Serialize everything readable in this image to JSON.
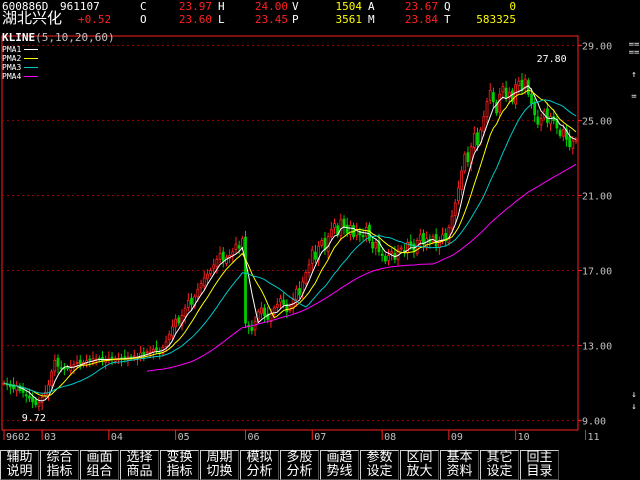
{
  "quote": {
    "code": "600886D",
    "date": "961107",
    "name": "湖北兴化",
    "change": "+0.52",
    "rows": [
      [
        {
          "label": "C",
          "value": "23.97"
        },
        {
          "label": "H",
          "value": "24.00"
        },
        {
          "label": "V",
          "value": "1504"
        },
        {
          "label": "A",
          "value": "23.67"
        },
        {
          "label": "Q",
          "value": "0"
        }
      ],
      [
        {
          "label": "O",
          "value": "23.60"
        },
        {
          "label": "L",
          "value": "23.45"
        },
        {
          "label": "P",
          "value": "3561"
        },
        {
          "label": "M",
          "value": "23.84"
        },
        {
          "label": "T",
          "value": "583325"
        }
      ]
    ]
  },
  "chart_title": {
    "name": "KLINE",
    "params": "(5,10,20,60)"
  },
  "ma_legend": [
    {
      "label": "PMA1",
      "color": "#ffffff"
    },
    {
      "label": "PMA2",
      "color": "#ffff00"
    },
    {
      "label": "PMA3",
      "color": "#00c8c8"
    },
    {
      "label": "PMA4",
      "color": "#ff00ff"
    }
  ],
  "colors": {
    "up": "#ff2020",
    "down": "#00d000",
    "grid": "#a00000",
    "axis": "#ff2020",
    "label": "#c0c0c0",
    "annot": "#ffffff"
  },
  "chart_data": {
    "type": "candlestick",
    "y_ticks": [
      "29.00",
      "25.00",
      "21.00",
      "17.00",
      "13.00",
      "9.00"
    ],
    "ylim": [
      8.5,
      29.5
    ],
    "x_labels": [
      "9602",
      "03",
      "04",
      "05",
      "06",
      "07",
      "08",
      "09",
      "10",
      "11"
    ],
    "x_label_index": [
      0,
      12,
      33,
      54,
      76,
      97,
      119,
      140,
      161,
      183
    ],
    "annotations": [
      {
        "text": "27.80",
        "index": 172,
        "value": 27.8
      },
      {
        "text": "9.72",
        "index": 10,
        "value": 9.72
      }
    ],
    "close": [
      11.0,
      10.9,
      10.8,
      10.7,
      10.85,
      10.6,
      10.5,
      10.35,
      10.2,
      10.0,
      9.85,
      9.95,
      10.25,
      10.5,
      10.9,
      11.6,
      12.2,
      11.9,
      11.8,
      11.75,
      11.8,
      11.9,
      12.0,
      12.1,
      12.05,
      12.1,
      12.2,
      12.25,
      12.3,
      12.28,
      12.25,
      12.2,
      12.25,
      12.3,
      12.28,
      12.32,
      12.3,
      12.28,
      12.3,
      12.4,
      12.35,
      12.45,
      12.4,
      12.6,
      12.5,
      12.7,
      12.65,
      12.8,
      12.75,
      12.6,
      12.9,
      13.2,
      13.6,
      14.0,
      14.4,
      14.2,
      14.6,
      15.0,
      15.4,
      15.2,
      15.6,
      16.0,
      16.3,
      16.6,
      16.8,
      17.0,
      17.3,
      17.6,
      17.9,
      17.5,
      17.7,
      17.8,
      18.0,
      18.4,
      18.2,
      18.7,
      14.2,
      14.0,
      13.8,
      14.3,
      14.8,
      15.0,
      14.6,
      14.4,
      14.7,
      15.0,
      15.2,
      15.5,
      15.2,
      14.8,
      15.1,
      15.5,
      16.0,
      15.7,
      16.4,
      16.9,
      17.3,
      18.1,
      17.6,
      18.3,
      18.6,
      18.1,
      18.8,
      19.2,
      19.5,
      18.9,
      19.7,
      19.3,
      19.0,
      19.4,
      18.8,
      19.2,
      18.9,
      18.8,
      19.3,
      18.6,
      18.2,
      18.5,
      18.0,
      17.8,
      17.5,
      17.8,
      18.0,
      17.6,
      18.1,
      18.2,
      18.0,
      18.5,
      18.3,
      18.0,
      18.6,
      18.9,
      18.4,
      18.7,
      18.5,
      18.8,
      18.3,
      18.6,
      18.9,
      18.6,
      19.3,
      19.9,
      20.6,
      21.4,
      22.3,
      23.2,
      22.8,
      23.6,
      24.3,
      23.7,
      24.5,
      25.2,
      26.0,
      26.6,
      26.0,
      25.4,
      26.4,
      26.8,
      26.2,
      26.5,
      26.0,
      26.9,
      27.1,
      26.6,
      27.2,
      26.4,
      25.9,
      25.3,
      24.8,
      25.1,
      25.5,
      24.9,
      25.2,
      25.0,
      24.6,
      24.2,
      24.5,
      24.0,
      23.6,
      23.9,
      23.97
    ]
  },
  "buttons": [
    [
      "辅助",
      "说明"
    ],
    [
      "综合",
      "指标"
    ],
    [
      "画面",
      "组合"
    ],
    [
      "选择",
      "商品"
    ],
    [
      "变换",
      "指标"
    ],
    [
      "周期",
      "切换"
    ],
    [
      "模拟",
      "分析"
    ],
    [
      "多股",
      "分析"
    ],
    [
      "画趋",
      "势线"
    ],
    [
      "参数",
      "设定"
    ],
    [
      "区间",
      "放大"
    ],
    [
      "基本",
      "资料"
    ],
    [
      "其它",
      "设定"
    ],
    [
      "回主",
      "目录"
    ]
  ],
  "side_icons": [
    "==",
    "==",
    "↑",
    "=",
    "↓",
    "↓"
  ]
}
